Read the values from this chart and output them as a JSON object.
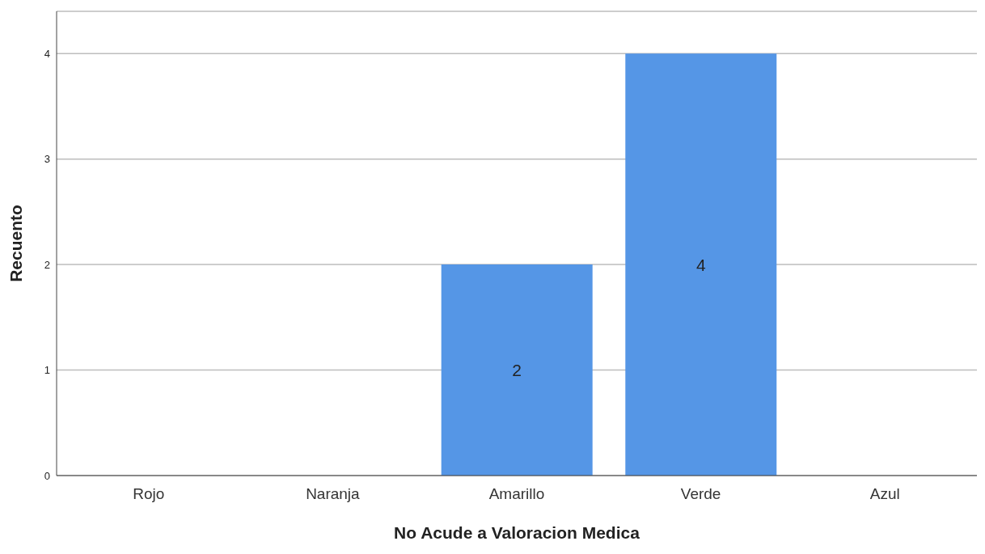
{
  "chart_data": {
    "type": "bar",
    "xlabel": "No Acude a Valoracion Medica",
    "ylabel": "Recuento",
    "categories": [
      "Rojo",
      "Naranja",
      "Amarillo",
      "Verde",
      "Azul"
    ],
    "values": [
      0,
      0,
      2,
      4,
      0
    ],
    "value_labels": [
      null,
      null,
      "2",
      "4",
      null
    ],
    "color": "#5596e6",
    "ylim": [
      0,
      4.4
    ],
    "yticks": [
      0,
      1,
      2,
      3,
      4
    ],
    "grid": "y"
  }
}
